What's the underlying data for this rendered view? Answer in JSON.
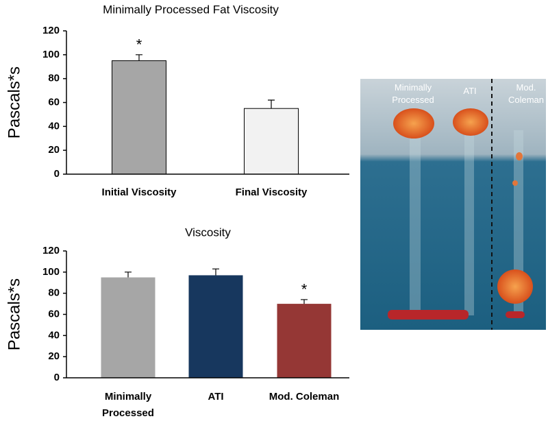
{
  "chart_data": [
    {
      "type": "bar",
      "title": "Minimally Processed Fat Viscosity",
      "ylabel": "Pascals*s",
      "categories": [
        "Initial Viscosity",
        "Final Viscosity"
      ],
      "values": [
        95,
        55
      ],
      "errors": [
        5,
        7
      ],
      "colors": [
        "#a6a6a6",
        "#f2f2f2"
      ],
      "annotations": [
        "*",
        null
      ],
      "ylim": [
        0,
        120
      ],
      "yticks": [
        0,
        20,
        40,
        60,
        80,
        100,
        120
      ]
    },
    {
      "type": "bar",
      "title": "Viscosity",
      "ylabel": "Pascals*s",
      "categories": [
        "Minimally\nProcessed",
        "ATI",
        "Mod. Coleman"
      ],
      "values": [
        95,
        97,
        70
      ],
      "errors": [
        5,
        6,
        4
      ],
      "colors": [
        "#a6a6a6",
        "#17375e",
        "#953735"
      ],
      "annotations": [
        null,
        null,
        "*"
      ],
      "ylim": [
        0,
        120
      ],
      "yticks": [
        0,
        20,
        40,
        60,
        80,
        100,
        120
      ]
    }
  ],
  "photo": {
    "labels": [
      "Minimally\nProcessed",
      "ATI",
      "Mod.\nColeman"
    ]
  }
}
